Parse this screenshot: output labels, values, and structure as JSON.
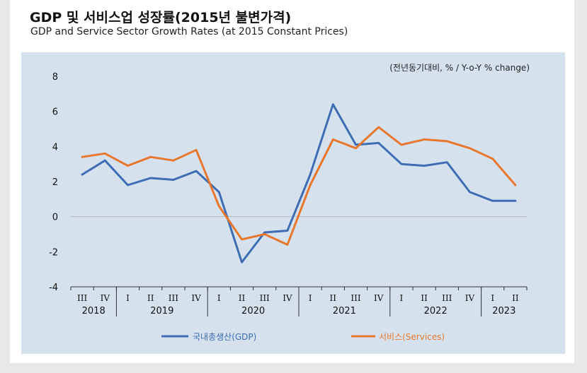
{
  "header": {
    "title": "GDP 및 서비스업 성장률(2015년 불변가격)",
    "subtitle": "GDP and Service Sector Growth Rates (at 2015 Constant Prices)"
  },
  "colors": {
    "gdp": "#3e6db3",
    "services": "#e8772e",
    "panel": "#d5e2ee"
  },
  "chart_data": {
    "type": "line",
    "unit_note": "(전년동기대비, % / Y-o-Y % change)",
    "ylim": [
      -4,
      8
    ],
    "yticks": [
      "8",
      "6",
      "4",
      "2",
      "0",
      "-2",
      "-4"
    ],
    "x": [
      "III",
      "IV",
      "I",
      "II",
      "III",
      "IV",
      "I",
      "II",
      "III",
      "IV",
      "I",
      "II",
      "III",
      "IV",
      "I",
      "II",
      "III",
      "IV",
      "I",
      "II"
    ],
    "years": [
      {
        "label": "2018",
        "from": 0,
        "to": 1
      },
      {
        "label": "2019",
        "from": 2,
        "to": 5
      },
      {
        "label": "2020",
        "from": 6,
        "to": 9
      },
      {
        "label": "2021",
        "from": 10,
        "to": 13
      },
      {
        "label": "2022",
        "from": 14,
        "to": 17
      },
      {
        "label": "2023",
        "from": 18,
        "to": 19
      }
    ],
    "series": [
      {
        "name": "국내총생산(GDP)",
        "color": "#3e6db3",
        "values": [
          2.4,
          3.2,
          1.8,
          2.2,
          2.1,
          2.6,
          1.4,
          -2.6,
          -0.9,
          -0.8,
          2.4,
          6.4,
          4.1,
          4.2,
          3.0,
          2.9,
          3.1,
          1.4,
          0.9,
          0.9
        ]
      },
      {
        "name": "서비스(Services)",
        "color": "#e8772e",
        "values": [
          3.4,
          3.6,
          2.9,
          3.4,
          3.2,
          3.8,
          0.6,
          -1.3,
          -1.0,
          -1.6,
          1.8,
          4.4,
          3.9,
          5.1,
          4.1,
          4.4,
          4.3,
          3.9,
          3.3,
          1.8
        ]
      }
    ],
    "grid": "zero-line only",
    "legend": "bottom"
  }
}
